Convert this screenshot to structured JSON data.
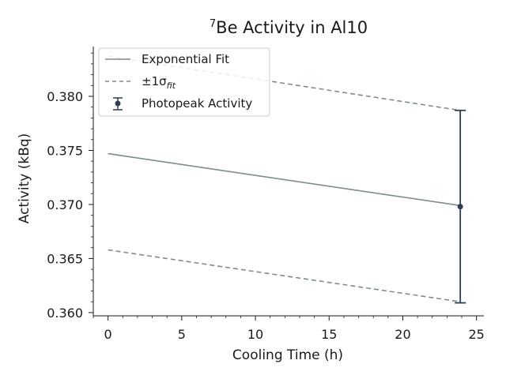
{
  "chart_data": {
    "type": "line",
    "title_sup": "7",
    "title_main": "Be Activity in Al10",
    "xlabel": "Cooling Time (h)",
    "ylabel": "Activity (kBq)",
    "xlim": [
      -1.0,
      25.5
    ],
    "ylim": [
      0.3597,
      0.3846
    ],
    "xticks": [
      0,
      5,
      10,
      15,
      20,
      25
    ],
    "yticks": [
      0.36,
      0.365,
      0.37,
      0.375,
      0.38
    ],
    "xtick_labels": [
      "0",
      "5",
      "10",
      "15",
      "20",
      "25"
    ],
    "ytick_labels": [
      "0.360",
      "0.365",
      "0.370",
      "0.375",
      "0.380"
    ],
    "legend_position": "top-left",
    "grid": false,
    "series": [
      {
        "name": "Exponential Fit",
        "kind": "line",
        "style": "solid",
        "color": "#7f8c8d",
        "x": [
          0,
          23.9
        ],
        "y": [
          0.3747,
          0.3699
        ]
      },
      {
        "name": "±1σ_fit",
        "legend_base": "±1σ",
        "legend_sub": "fit",
        "kind": "band",
        "style": "dashed",
        "color": "#7f8c8d",
        "upper": {
          "x": [
            0,
            23.9
          ],
          "y": [
            0.3837,
            0.3787
          ]
        },
        "lower": {
          "x": [
            0,
            23.9
          ],
          "y": [
            0.3658,
            0.361
          ]
        }
      },
      {
        "name": "Photopeak Activity",
        "kind": "errorbar",
        "color": "#2c3e50",
        "x": [
          23.9
        ],
        "y": [
          0.3698
        ],
        "yerr_low": [
          0.3609
        ],
        "yerr_high": [
          0.3787
        ]
      }
    ]
  }
}
